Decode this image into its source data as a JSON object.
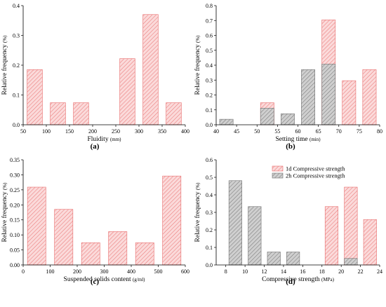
{
  "colors": {
    "red_fill": "#f7c8c8",
    "red_stroke": "#e86b6b",
    "gray_fill": "#bdbdbd",
    "gray_stroke": "#6f6f6f"
  },
  "chart_data": [
    {
      "panel": "(a)",
      "type": "bar",
      "xlabel": "Fluidity",
      "xunit": "(mm)",
      "ylabel": "Relative frequency",
      "yunit": "(%)",
      "xlim": [
        50,
        400
      ],
      "ylim": [
        0,
        0.4
      ],
      "xticks": [
        50,
        100,
        150,
        200,
        250,
        300,
        350,
        400
      ],
      "yticks": [
        0.0,
        0.1,
        0.2,
        0.3,
        0.4
      ],
      "bar_width": 33,
      "series": [
        {
          "color": "red",
          "x": [
            75,
            125,
            175,
            275,
            325,
            375
          ],
          "values": [
            0.185,
            0.074,
            0.074,
            0.222,
            0.37,
            0.074
          ]
        }
      ]
    },
    {
      "panel": "(b)",
      "type": "bar",
      "xlabel": "Setting time",
      "xunit": "(min)",
      "ylabel": "Relative frequency",
      "yunit": "(%)",
      "xlim": [
        40,
        80
      ],
      "ylim": [
        0,
        0.8
      ],
      "xticks": [
        40,
        45,
        50,
        55,
        60,
        65,
        70,
        75,
        80
      ],
      "yticks": [
        0.0,
        0.1,
        0.2,
        0.3,
        0.4,
        0.5,
        0.6,
        0.7,
        0.8
      ],
      "bar_width": 3.3,
      "series": [
        {
          "color": "red",
          "x": [
            52.5,
            67.5,
            72.5,
            77.5
          ],
          "values": [
            0.148,
            0.704,
            0.296,
            0.37
          ]
        },
        {
          "color": "gray",
          "x": [
            42.5,
            52.5,
            57.5,
            62.5,
            67.5
          ],
          "values": [
            0.037,
            0.111,
            0.074,
            0.37,
            0.407
          ]
        }
      ]
    },
    {
      "panel": "(c)",
      "type": "bar",
      "xlabel": "Suspended solids content",
      "xunit": "(g/ml)",
      "ylabel": "Relative frequency",
      "yunit": "(%)",
      "xlim": [
        0,
        600
      ],
      "ylim": [
        0,
        0.35
      ],
      "xticks": [
        0,
        100,
        200,
        300,
        400,
        500,
        600
      ],
      "yticks": [
        0.0,
        0.05,
        0.1,
        0.15,
        0.2,
        0.25,
        0.3,
        0.35
      ],
      "bar_width": 68,
      "series": [
        {
          "color": "red",
          "x": [
            50,
            150,
            250,
            350,
            450,
            550
          ],
          "values": [
            0.259,
            0.185,
            0.074,
            0.111,
            0.074,
            0.296
          ]
        }
      ]
    },
    {
      "panel": "(d)",
      "type": "bar",
      "xlabel": "Compressive strength",
      "xunit": "(MPa)",
      "ylabel": "Relative frequency",
      "yunit": "(%)",
      "xlim": [
        7,
        24
      ],
      "ylim": [
        0,
        0.6
      ],
      "xticks": [
        8,
        10,
        12,
        14,
        16,
        18,
        20,
        22,
        24
      ],
      "yticks": [
        0.0,
        0.1,
        0.2,
        0.3,
        0.4,
        0.5,
        0.6
      ],
      "bar_width": 1.35,
      "legend": {
        "placement": "top-right"
      },
      "series": [
        {
          "name": "1d Compressive strength",
          "color": "red",
          "x": [
            19,
            21,
            23
          ],
          "values": [
            0.333,
            0.444,
            0.259
          ]
        },
        {
          "name": "2h Compressive strength",
          "color": "gray",
          "x": [
            9,
            11,
            13,
            15,
            21
          ],
          "values": [
            0.481,
            0.333,
            0.074,
            0.074,
            0.037
          ]
        }
      ]
    }
  ]
}
